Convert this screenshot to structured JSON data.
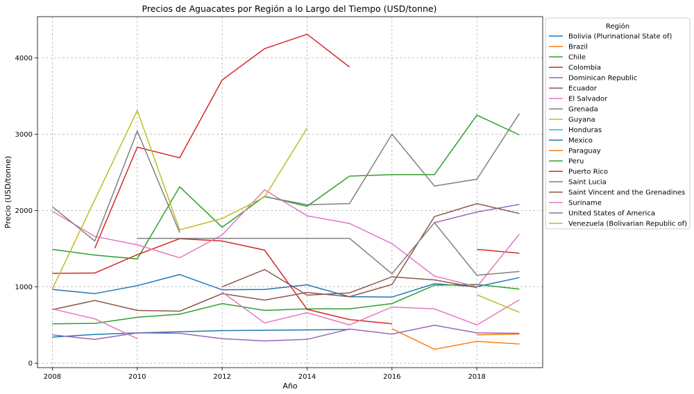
{
  "chart_data": {
    "type": "line",
    "title": "Precios de Aguacates por Región a lo Largo del Tiempo (USD/tonne)",
    "xlabel": "Año",
    "ylabel": "Precio (USD/tonne)",
    "xlim": [
      2007.65,
      2019.55
    ],
    "ylim": [
      -60,
      4540
    ],
    "xticks": [
      2008,
      2010,
      2012,
      2014,
      2016,
      2018
    ],
    "yticks": [
      0,
      1000,
      2000,
      3000,
      4000
    ],
    "grid": true,
    "legend_title": "Región",
    "legend_position": "outside-right",
    "series": [
      {
        "name": "Bolivia (Plurinational State of)",
        "color": "#1f77b4",
        "segments": [
          [
            [
              2008,
              340
            ],
            [
              2009,
              375
            ],
            [
              2010,
              395
            ],
            [
              2011,
              410
            ],
            [
              2012,
              425
            ],
            [
              2013,
              430
            ],
            [
              2014,
              435
            ],
            [
              2015,
              440
            ]
          ],
          [
            [
              2008,
              965
            ],
            [
              2009,
              910
            ],
            [
              2010,
              1015
            ],
            [
              2011,
              1160
            ],
            [
              2012,
              960
            ],
            [
              2013,
              965
            ],
            [
              2014,
              1025
            ],
            [
              2015,
              870
            ],
            [
              2016,
              865
            ],
            [
              2017,
              1040
            ],
            [
              2018,
              1000
            ],
            [
              2019,
              1120
            ]
          ]
        ]
      },
      {
        "name": "Brazil",
        "color": "#ff7f0e",
        "segments": [
          [
            [
              2016,
              450
            ],
            [
              2017,
              180
            ],
            [
              2018,
              285
            ],
            [
              2019,
              250
            ]
          ],
          [
            [
              2018,
              370
            ],
            [
              2019,
              380
            ]
          ]
        ]
      },
      {
        "name": "Chile",
        "color": "#2ca02c",
        "segments": [
          [
            [
              2008,
              515
            ],
            [
              2009,
              520
            ],
            [
              2010,
              600
            ],
            [
              2011,
              640
            ],
            [
              2012,
              780
            ],
            [
              2013,
              690
            ],
            [
              2014,
              710
            ],
            [
              2015,
              710
            ],
            [
              2016,
              780
            ],
            [
              2017,
              1020
            ],
            [
              2018,
              1030
            ],
            [
              2019,
              970
            ]
          ],
          [
            [
              2008,
              1490
            ],
            [
              2009,
              1415
            ],
            [
              2010,
              1365
            ],
            [
              2011,
              2310
            ],
            [
              2012,
              1780
            ],
            [
              2013,
              2185
            ],
            [
              2014,
              2055
            ],
            [
              2015,
              2450
            ],
            [
              2016,
              2470
            ],
            [
              2017,
              2470
            ],
            [
              2018,
              3250
            ],
            [
              2019,
              2990
            ]
          ]
        ]
      },
      {
        "name": "Colombia",
        "color": "#d62728",
        "segments": [
          [
            [
              2008,
              1175
            ],
            [
              2009,
              1180
            ],
            [
              2010,
              1420
            ],
            [
              2011,
              1630
            ],
            [
              2012,
              1600
            ],
            [
              2013,
              1480
            ],
            [
              2014,
              705
            ],
            [
              2015,
              570
            ],
            [
              2016,
              515
            ]
          ],
          [
            [
              2009,
              1505
            ],
            [
              2010,
              2830
            ],
            [
              2011,
              2690
            ],
            [
              2012,
              3710
            ],
            [
              2013,
              4120
            ],
            [
              2014,
              4310
            ],
            [
              2015,
              3880
            ]
          ],
          [
            [
              2018,
              1490
            ],
            [
              2019,
              1440
            ]
          ]
        ]
      },
      {
        "name": "Dominican Republic",
        "color": "#9467bd",
        "segments": [
          [
            [
              2008,
              370
            ],
            [
              2009,
              310
            ],
            [
              2010,
              395
            ],
            [
              2011,
              390
            ],
            [
              2012,
              320
            ],
            [
              2013,
              290
            ],
            [
              2014,
              310
            ],
            [
              2015,
              445
            ],
            [
              2016,
              380
            ],
            [
              2017,
              495
            ],
            [
              2018,
              395
            ],
            [
              2019,
              390
            ]
          ],
          [
            [
              2017,
              1840
            ],
            [
              2018,
              1980
            ],
            [
              2019,
              2080
            ]
          ]
        ]
      },
      {
        "name": "Ecuador",
        "color": "#8c564b",
        "segments": [
          [
            [
              2008,
              700
            ],
            [
              2009,
              820
            ],
            [
              2010,
              690
            ],
            [
              2011,
              680
            ],
            [
              2012,
              910
            ],
            [
              2013,
              825
            ],
            [
              2014,
              925
            ],
            [
              2015,
              870
            ],
            [
              2016,
              1030
            ],
            [
              2017,
              1920
            ],
            [
              2018,
              2090
            ],
            [
              2019,
              1960
            ]
          ],
          [
            [
              2012,
              1000
            ],
            [
              2013,
              1225
            ],
            [
              2014,
              890
            ],
            [
              2015,
              920
            ],
            [
              2016,
              1130
            ],
            [
              2017,
              1090
            ],
            [
              2018,
              990
            ]
          ]
        ]
      },
      {
        "name": "El Salvador",
        "color": "#e377c2",
        "segments": [
          [
            [
              2008,
              710
            ],
            [
              2009,
              580
            ],
            [
              2010,
              320
            ]
          ],
          [
            [
              2008,
              1990
            ],
            [
              2009,
              1660
            ],
            [
              2010,
              1550
            ],
            [
              2011,
              1380
            ],
            [
              2012,
              1680
            ],
            [
              2013,
              2270
            ],
            [
              2014,
              1930
            ],
            [
              2015,
              1830
            ],
            [
              2016,
              1565
            ],
            [
              2017,
              1140
            ],
            [
              2018,
              1000
            ],
            [
              2019,
              1690
            ]
          ],
          [
            [
              2012,
              930
            ],
            [
              2013,
              525
            ],
            [
              2014,
              660
            ],
            [
              2015,
              500
            ],
            [
              2016,
              735
            ],
            [
              2017,
              710
            ],
            [
              2018,
              500
            ],
            [
              2019,
              830
            ]
          ]
        ]
      },
      {
        "name": "Grenada",
        "color": "#7f7f7f",
        "segments": [
          [
            [
              2008,
              2050
            ],
            [
              2009,
              1600
            ],
            [
              2010,
              3040
            ],
            [
              2011,
              1710
            ]
          ],
          [
            [
              2010,
              1635
            ],
            [
              2011,
              1635
            ],
            [
              2012,
              1635
            ],
            [
              2013,
              1635
            ],
            [
              2014,
              1635
            ],
            [
              2015,
              1635
            ],
            [
              2016,
              1170
            ],
            [
              2017,
              1840
            ],
            [
              2018,
              1150
            ],
            [
              2019,
              1200
            ]
          ],
          [
            [
              2013,
              2180
            ],
            [
              2014,
              2075
            ],
            [
              2015,
              2090
            ],
            [
              2016,
              3000
            ],
            [
              2017,
              2320
            ],
            [
              2018,
              2410
            ],
            [
              2019,
              3270
            ]
          ]
        ]
      },
      {
        "name": "Guyana",
        "color": "#bcbd22",
        "segments": [
          [
            [
              2008,
              970
            ],
            [
              2009,
              2140
            ],
            [
              2010,
              3310
            ],
            [
              2011,
              1745
            ],
            [
              2012,
              1895
            ],
            [
              2013,
              2175
            ],
            [
              2014,
              3080
            ]
          ],
          [
            [
              2018,
              895
            ],
            [
              2019,
              665
            ]
          ]
        ]
      },
      {
        "name": "Honduras",
        "color": "#17becf",
        "segments": []
      },
      {
        "name": "Mexico",
        "color": "#1f77b4",
        "segments": []
      },
      {
        "name": "Paraguay",
        "color": "#ff7f0e",
        "segments": []
      },
      {
        "name": "Peru",
        "color": "#2ca02c",
        "segments": []
      },
      {
        "name": "Puerto Rico",
        "color": "#d62728",
        "segments": []
      },
      {
        "name": "Saint Lucia",
        "color": "#9467bd",
        "segments": []
      },
      {
        "name": "Saint Vincent and the Grenadines",
        "color": "#8c564b",
        "segments": []
      },
      {
        "name": "Suriname",
        "color": "#e377c2",
        "segments": []
      },
      {
        "name": "United States of America",
        "color": "#7f7f7f",
        "segments": []
      },
      {
        "name": "Venezuela (Bolivarian Republic of)",
        "color": "#bcbd22",
        "segments": []
      }
    ]
  }
}
